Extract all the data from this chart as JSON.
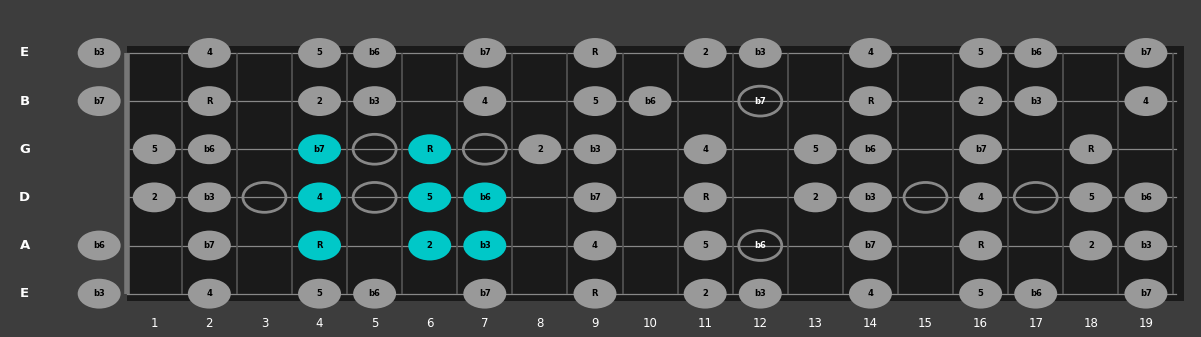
{
  "bg_color": "#3d3d3d",
  "fretboard_color": "#1a1a1a",
  "string_labels": [
    "E",
    "B",
    "G",
    "D",
    "A",
    "E"
  ],
  "num_frets": 19,
  "note_color_normal": "#999999",
  "note_color_highlight": "#00c8c8",
  "note_text_dark": "#000000",
  "string_color": "#888888",
  "fret_color": "#555555",
  "nut_color": "#777777",
  "open_ring_color": "#888888",
  "notes": [
    {
      "string": 0,
      "fret": 0,
      "label": "b3",
      "type": "normal"
    },
    {
      "string": 0,
      "fret": 2,
      "label": "4",
      "type": "normal"
    },
    {
      "string": 0,
      "fret": 4,
      "label": "5",
      "type": "normal"
    },
    {
      "string": 0,
      "fret": 5,
      "label": "b6",
      "type": "normal"
    },
    {
      "string": 0,
      "fret": 7,
      "label": "b7",
      "type": "normal"
    },
    {
      "string": 0,
      "fret": 9,
      "label": "R",
      "type": "normal"
    },
    {
      "string": 0,
      "fret": 11,
      "label": "2",
      "type": "normal"
    },
    {
      "string": 0,
      "fret": 12,
      "label": "b3",
      "type": "normal"
    },
    {
      "string": 0,
      "fret": 14,
      "label": "4",
      "type": "normal"
    },
    {
      "string": 0,
      "fret": 16,
      "label": "5",
      "type": "normal"
    },
    {
      "string": 0,
      "fret": 17,
      "label": "b6",
      "type": "normal"
    },
    {
      "string": 0,
      "fret": 19,
      "label": "b7",
      "type": "normal"
    },
    {
      "string": 1,
      "fret": 0,
      "label": "b7",
      "type": "normal"
    },
    {
      "string": 1,
      "fret": 2,
      "label": "R",
      "type": "normal"
    },
    {
      "string": 1,
      "fret": 4,
      "label": "2",
      "type": "normal"
    },
    {
      "string": 1,
      "fret": 5,
      "label": "b3",
      "type": "normal"
    },
    {
      "string": 1,
      "fret": 7,
      "label": "4",
      "type": "normal"
    },
    {
      "string": 1,
      "fret": 9,
      "label": "5",
      "type": "normal"
    },
    {
      "string": 1,
      "fret": 10,
      "label": "b6",
      "type": "normal"
    },
    {
      "string": 1,
      "fret": 12,
      "label": "b7",
      "type": "open"
    },
    {
      "string": 1,
      "fret": 14,
      "label": "R",
      "type": "normal"
    },
    {
      "string": 1,
      "fret": 16,
      "label": "2",
      "type": "normal"
    },
    {
      "string": 1,
      "fret": 17,
      "label": "b3",
      "type": "normal"
    },
    {
      "string": 1,
      "fret": 19,
      "label": "4",
      "type": "normal"
    },
    {
      "string": 2,
      "fret": 1,
      "label": "5",
      "type": "normal"
    },
    {
      "string": 2,
      "fret": 2,
      "label": "b6",
      "type": "normal"
    },
    {
      "string": 2,
      "fret": 4,
      "label": "b7",
      "type": "highlight"
    },
    {
      "string": 2,
      "fret": 5,
      "label": "",
      "type": "open"
    },
    {
      "string": 2,
      "fret": 6,
      "label": "R",
      "type": "highlight"
    },
    {
      "string": 2,
      "fret": 7,
      "label": "",
      "type": "open"
    },
    {
      "string": 2,
      "fret": 8,
      "label": "2",
      "type": "normal"
    },
    {
      "string": 2,
      "fret": 9,
      "label": "b3",
      "type": "normal"
    },
    {
      "string": 2,
      "fret": 11,
      "label": "4",
      "type": "normal"
    },
    {
      "string": 2,
      "fret": 13,
      "label": "5",
      "type": "normal"
    },
    {
      "string": 2,
      "fret": 14,
      "label": "b6",
      "type": "normal"
    },
    {
      "string": 2,
      "fret": 16,
      "label": "b7",
      "type": "normal"
    },
    {
      "string": 2,
      "fret": 18,
      "label": "R",
      "type": "normal"
    },
    {
      "string": 3,
      "fret": 1,
      "label": "2",
      "type": "normal"
    },
    {
      "string": 3,
      "fret": 2,
      "label": "b3",
      "type": "normal"
    },
    {
      "string": 3,
      "fret": 3,
      "label": "",
      "type": "open"
    },
    {
      "string": 3,
      "fret": 4,
      "label": "4",
      "type": "highlight"
    },
    {
      "string": 3,
      "fret": 5,
      "label": "",
      "type": "open"
    },
    {
      "string": 3,
      "fret": 6,
      "label": "5",
      "type": "highlight"
    },
    {
      "string": 3,
      "fret": 7,
      "label": "b6",
      "type": "highlight"
    },
    {
      "string": 3,
      "fret": 9,
      "label": "b7",
      "type": "normal"
    },
    {
      "string": 3,
      "fret": 11,
      "label": "R",
      "type": "normal"
    },
    {
      "string": 3,
      "fret": 13,
      "label": "2",
      "type": "normal"
    },
    {
      "string": 3,
      "fret": 14,
      "label": "b3",
      "type": "normal"
    },
    {
      "string": 3,
      "fret": 15,
      "label": "",
      "type": "open"
    },
    {
      "string": 3,
      "fret": 16,
      "label": "4",
      "type": "normal"
    },
    {
      "string": 3,
      "fret": 17,
      "label": "",
      "type": "open"
    },
    {
      "string": 3,
      "fret": 18,
      "label": "5",
      "type": "normal"
    },
    {
      "string": 3,
      "fret": 19,
      "label": "b6",
      "type": "normal"
    },
    {
      "string": 4,
      "fret": 0,
      "label": "b6",
      "type": "normal"
    },
    {
      "string": 4,
      "fret": 2,
      "label": "b7",
      "type": "normal"
    },
    {
      "string": 4,
      "fret": 4,
      "label": "R",
      "type": "highlight"
    },
    {
      "string": 4,
      "fret": 6,
      "label": "2",
      "type": "highlight"
    },
    {
      "string": 4,
      "fret": 7,
      "label": "b3",
      "type": "highlight"
    },
    {
      "string": 4,
      "fret": 9,
      "label": "4",
      "type": "normal"
    },
    {
      "string": 4,
      "fret": 11,
      "label": "5",
      "type": "normal"
    },
    {
      "string": 4,
      "fret": 12,
      "label": "b6",
      "type": "open"
    },
    {
      "string": 4,
      "fret": 14,
      "label": "b7",
      "type": "normal"
    },
    {
      "string": 4,
      "fret": 16,
      "label": "R",
      "type": "normal"
    },
    {
      "string": 4,
      "fret": 18,
      "label": "2",
      "type": "normal"
    },
    {
      "string": 4,
      "fret": 19,
      "label": "b3",
      "type": "normal"
    },
    {
      "string": 5,
      "fret": 0,
      "label": "b3",
      "type": "normal"
    },
    {
      "string": 5,
      "fret": 2,
      "label": "4",
      "type": "normal"
    },
    {
      "string": 5,
      "fret": 4,
      "label": "5",
      "type": "normal"
    },
    {
      "string": 5,
      "fret": 5,
      "label": "b6",
      "type": "normal"
    },
    {
      "string": 5,
      "fret": 7,
      "label": "b7",
      "type": "normal"
    },
    {
      "string": 5,
      "fret": 9,
      "label": "R",
      "type": "normal"
    },
    {
      "string": 5,
      "fret": 11,
      "label": "2",
      "type": "normal"
    },
    {
      "string": 5,
      "fret": 12,
      "label": "b3",
      "type": "normal"
    },
    {
      "string": 5,
      "fret": 14,
      "label": "4",
      "type": "normal"
    },
    {
      "string": 5,
      "fret": 16,
      "label": "5",
      "type": "normal"
    },
    {
      "string": 5,
      "fret": 17,
      "label": "b6",
      "type": "normal"
    },
    {
      "string": 5,
      "fret": 19,
      "label": "b7",
      "type": "normal"
    }
  ]
}
